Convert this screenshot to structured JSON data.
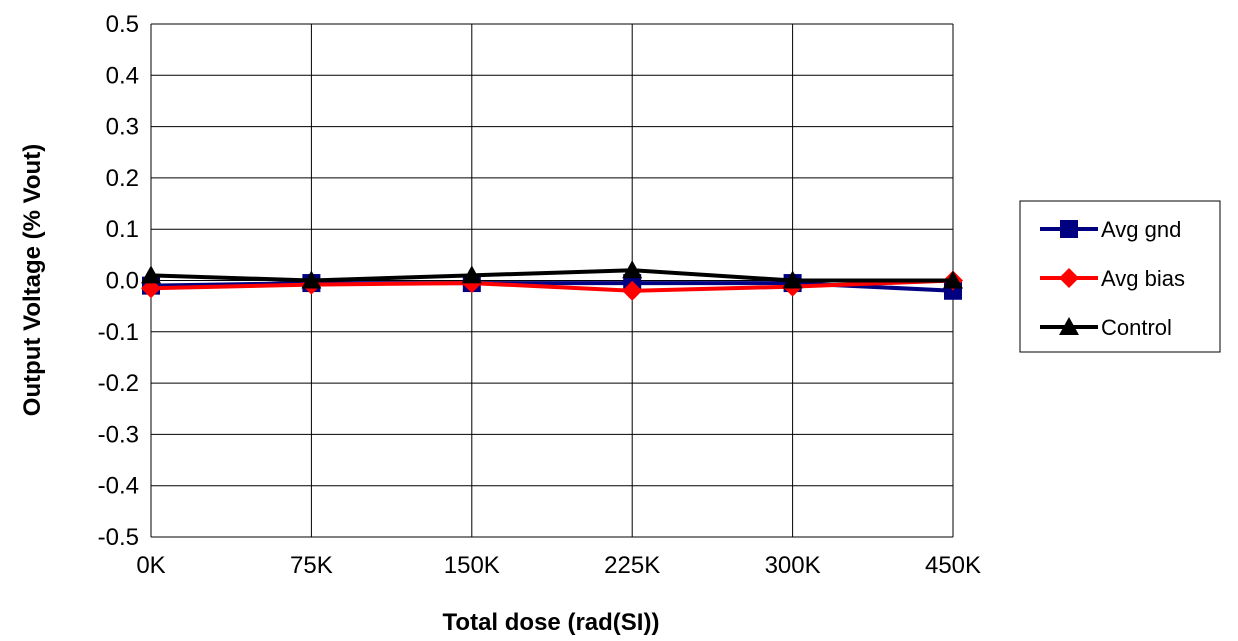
{
  "chart_data": {
    "type": "line",
    "categories": [
      "0K",
      "75K",
      "150K",
      "225K",
      "300K",
      "450K"
    ],
    "xlabel": "Total dose (rad(SI))",
    "ylabel": "Output Voltage (% Vout)",
    "ylim": [
      -0.5,
      0.5
    ],
    "y_ticks": [
      "0.5",
      "0.4",
      "0.3",
      "0.2",
      "0.1",
      "0.0",
      "-0.1",
      "-0.2",
      "-0.3",
      "-0.4",
      "-0.5"
    ],
    "grid": true,
    "legend_position": "right",
    "series": [
      {
        "name": "Avg gnd",
        "color": "#000080",
        "marker": "square",
        "values": [
          -0.01,
          -0.005,
          -0.005,
          -0.005,
          -0.005,
          -0.02
        ]
      },
      {
        "name": "Avg bias",
        "color": "#ff0000",
        "marker": "diamond",
        "values": [
          -0.015,
          -0.008,
          -0.005,
          -0.02,
          -0.012,
          0.0
        ]
      },
      {
        "name": "Control",
        "color": "#000000",
        "marker": "triangle",
        "values": [
          0.01,
          0.0,
          0.01,
          0.02,
          0.0,
          0.0
        ]
      }
    ]
  }
}
